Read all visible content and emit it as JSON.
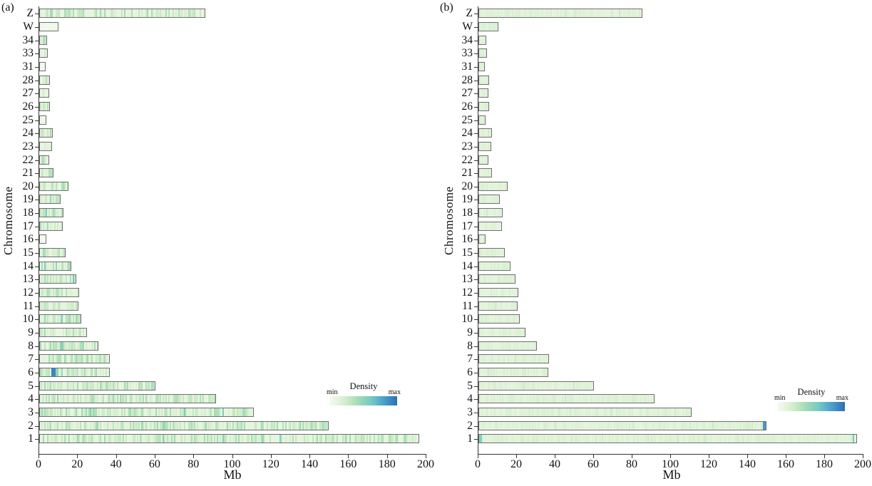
{
  "colors": {
    "background": "#ffffff",
    "bar_border": "#6f6f6f",
    "axis": "#333333",
    "text": "#111111",
    "density_ramp": [
      [
        0.0,
        "#f5faf2"
      ],
      [
        0.15,
        "#e2f3da"
      ],
      [
        0.3,
        "#c4e7c0"
      ],
      [
        0.45,
        "#9cd9b6"
      ],
      [
        0.6,
        "#7accc1"
      ],
      [
        0.72,
        "#5cb3cc"
      ],
      [
        0.85,
        "#4394ca"
      ],
      [
        1.0,
        "#2f6fb0"
      ]
    ]
  },
  "chart_data": [
    {
      "type": "bar",
      "orientation": "horizontal",
      "panel_label": "(a)",
      "xlabel": "Mb",
      "ylabel": "Chromosome",
      "xlim": [
        0,
        200
      ],
      "xticks": [
        0,
        20,
        40,
        60,
        80,
        100,
        120,
        140,
        160,
        180,
        200
      ],
      "categories_top_to_bottom": [
        "Z",
        "W",
        "34",
        "33",
        "31",
        "28",
        "27",
        "26",
        "25",
        "24",
        "23",
        "22",
        "21",
        "20",
        "19",
        "18",
        "17",
        "16",
        "15",
        "14",
        "13",
        "12",
        "11",
        "10",
        "9",
        "8",
        "7",
        "6",
        "5",
        "4",
        "3",
        "2",
        "1"
      ],
      "lengths_mb": [
        86,
        9.8,
        4.1,
        4.6,
        3.2,
        5.6,
        5.3,
        5.6,
        3.8,
        7.0,
        6.6,
        5.0,
        7.2,
        15.0,
        11.2,
        12.6,
        12.2,
        3.6,
        13.6,
        16.6,
        19.2,
        20.8,
        20.2,
        21.6,
        24.6,
        30.5,
        36.6,
        36.4,
        60.0,
        91.3,
        110.8,
        149.6,
        196.5
      ],
      "legend": {
        "title": "Density",
        "min_label": "min",
        "max_label": "max"
      },
      "density_style": {
        "texture": "striped",
        "base": 0.1,
        "variation": 0.34,
        "uniform": false,
        "pale_chromosomes": [
          "W",
          "16",
          "31",
          "25"
        ]
      },
      "highlights": [
        {
          "chromosome": "6",
          "start_mb": 5.2,
          "end_mb": 7.4,
          "level": 0.92
        },
        {
          "chromosome": "6",
          "start_mb": 7.4,
          "end_mb": 9.2,
          "level": 0.5
        }
      ]
    },
    {
      "type": "bar",
      "orientation": "horizontal",
      "panel_label": "(b)",
      "xlabel": "Mb",
      "ylabel": "Chromosome",
      "xlim": [
        0,
        200
      ],
      "xticks": [
        0,
        20,
        40,
        60,
        80,
        100,
        120,
        140,
        160,
        180,
        200
      ],
      "categories_top_to_bottom": [
        "Z",
        "W",
        "34",
        "33",
        "31",
        "28",
        "27",
        "26",
        "25",
        "24",
        "23",
        "22",
        "21",
        "20",
        "19",
        "18",
        "17",
        "16",
        "15",
        "14",
        "13",
        "12",
        "11",
        "10",
        "9",
        "8",
        "7",
        "6",
        "5",
        "4",
        "3",
        "2",
        "1"
      ],
      "lengths_mb": [
        85,
        10.2,
        4.1,
        4.6,
        3.2,
        5.6,
        5.3,
        5.6,
        3.8,
        7.0,
        6.6,
        5.0,
        7.2,
        15.0,
        11.2,
        12.6,
        12.2,
        3.6,
        13.6,
        16.6,
        19.2,
        20.8,
        20.2,
        21.6,
        24.6,
        30.5,
        36.6,
        36.4,
        60.0,
        91.3,
        110.8,
        149.6,
        196.8
      ],
      "legend": {
        "title": "Density",
        "min_label": "min",
        "max_label": "max"
      },
      "density_style": {
        "texture": "striped",
        "base": 0.11,
        "variation": 0.09,
        "uniform": true,
        "pale_chromosomes": []
      },
      "highlights": [
        {
          "chromosome": "2",
          "start_mb": 147.2,
          "end_mb": 148.4,
          "level": 0.82
        },
        {
          "chromosome": "1",
          "start_mb": 193.4,
          "end_mb": 194.4,
          "level": 0.62
        },
        {
          "chromosome": "1",
          "start_mb": 0.0,
          "end_mb": 0.8,
          "level": 0.55
        }
      ]
    }
  ]
}
